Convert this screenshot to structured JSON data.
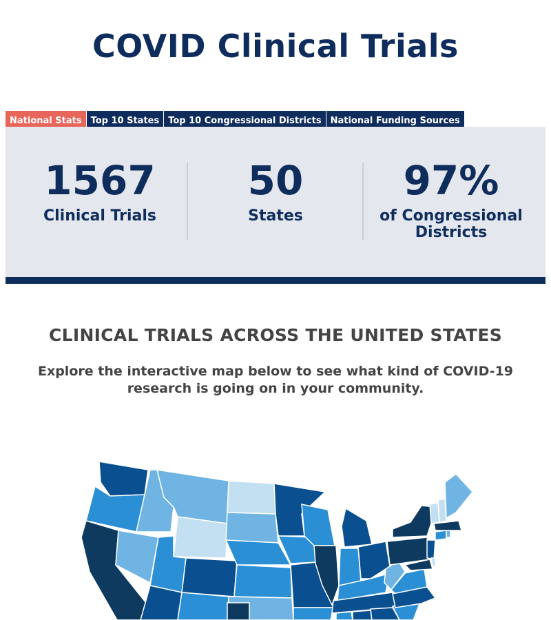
{
  "header": {
    "title": "COVID Clinical Trials"
  },
  "tabs": [
    {
      "label": "National Stats",
      "active": true
    },
    {
      "label": "Top 10 States",
      "active": false
    },
    {
      "label": "Top 10 Congressional Districts",
      "active": false
    },
    {
      "label": "National Funding Sources",
      "active": false
    }
  ],
  "stats": [
    {
      "number": "1567",
      "label": "Clinical Trials"
    },
    {
      "number": "50",
      "label": "States"
    },
    {
      "number": "97%",
      "label": "of Congressional Districts"
    }
  ],
  "map_section": {
    "heading": "CLINICAL TRIALS ACROSS THE UNITED STATES",
    "subheading": "Explore the interactive map below to see what kind of COVID-19 research is going on in your community."
  },
  "colors": {
    "navy": "#0f2d5c",
    "accent": "#e8655a",
    "panel": "#e4e8ee",
    "map_darkest": "#0d3a5e",
    "map_dark": "#0a4f8f",
    "map_mid": "#2b8fd6",
    "map_light": "#6fb4e3",
    "map_lightest": "#c3dff2"
  }
}
